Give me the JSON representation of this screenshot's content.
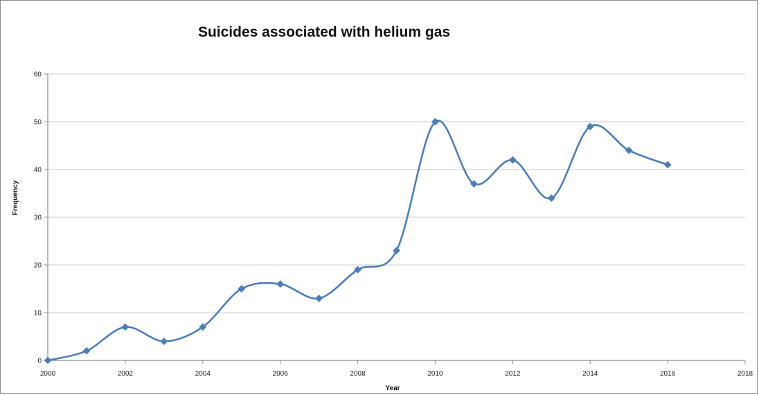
{
  "chart_data": {
    "type": "line",
    "title": "Suicides associated with helium gas",
    "xlabel": "Year",
    "ylabel": "Frequency",
    "xlim": [
      2000,
      2018
    ],
    "ylim": [
      0,
      60
    ],
    "x_ticks": [
      "2000",
      "2002",
      "2004",
      "2006",
      "2008",
      "2010",
      "2012",
      "2014",
      "2016",
      "2018"
    ],
    "y_ticks": [
      "0",
      "10",
      "20",
      "30",
      "40",
      "50",
      "60"
    ],
    "grid": true,
    "legend": "none",
    "smooth": true,
    "marker": "diamond",
    "series": [
      {
        "color": "#4a7ebb",
        "x": [
          2000,
          2001,
          2002,
          2003,
          2004,
          2005,
          2006,
          2007,
          2008,
          2009,
          2010,
          2011,
          2012,
          2013,
          2014,
          2015,
          2016
        ],
        "y": [
          0,
          2,
          7,
          4,
          7,
          15,
          16,
          13,
          19,
          23,
          50,
          37,
          42,
          34,
          49,
          44,
          41
        ]
      }
    ]
  }
}
